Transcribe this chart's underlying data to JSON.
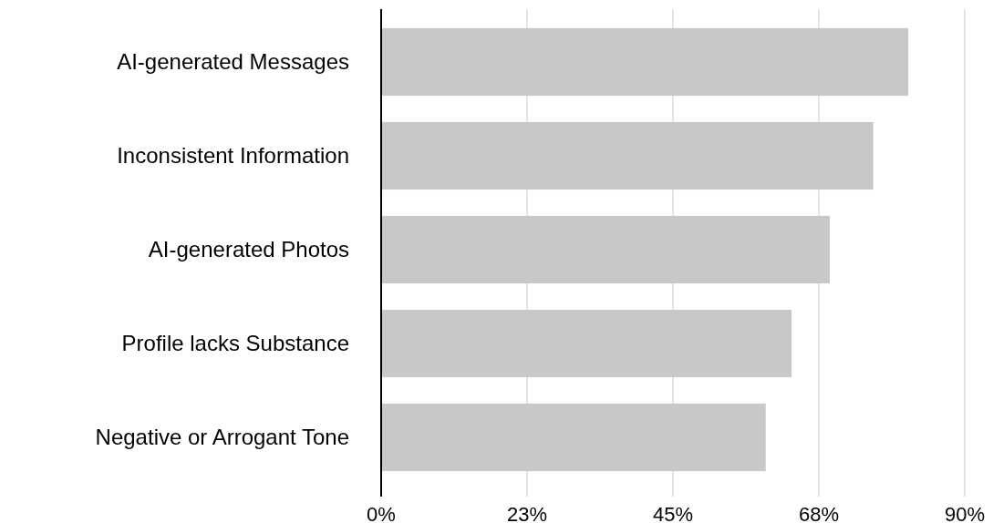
{
  "chart_data": {
    "type": "bar",
    "orientation": "horizontal",
    "categories": [
      "AI-generated Messages",
      "Inconsistent Information",
      "AI-generated Photos",
      "Profile lacks Substance",
      "Negative or Arrogant Tone"
    ],
    "values": [
      81.3,
      75.9,
      69.2,
      63.3,
      59.3
    ],
    "color": "#c8c8c8",
    "xlim": [
      0,
      90
    ],
    "xticks": [
      {
        "value": 0,
        "label": "0%"
      },
      {
        "value": 22.5,
        "label": "23%"
      },
      {
        "value": 45,
        "label": "45%"
      },
      {
        "value": 67.5,
        "label": "68%"
      },
      {
        "value": 90,
        "label": "90%"
      }
    ],
    "grid": "x"
  }
}
